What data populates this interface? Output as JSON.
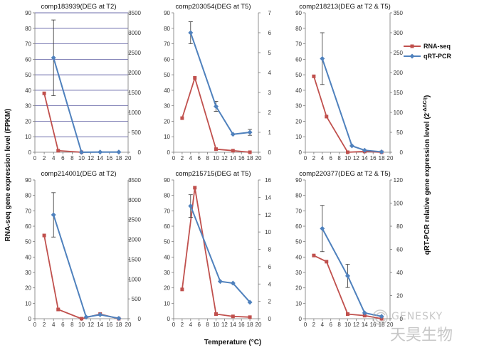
{
  "figure": {
    "y_left_label": "RNA-seq gene expression level (FPKM)",
    "y_right_label": "qRT-PCR relative gene expression level (2^-ΔΔCq)",
    "x_label": "Temperature (°C)",
    "legend": [
      {
        "name": "RNA-seq",
        "color": "#c0504d",
        "marker": "square"
      },
      {
        "name": "qRT-PCR",
        "color": "#4f81bd",
        "marker": "diamond"
      }
    ],
    "watermark": {
      "text_latin": "GENESKY",
      "text_cn": "天昊生物"
    }
  },
  "chart_data": [
    {
      "type": "line",
      "title": "comp183939(DEG at T2)",
      "x_ticks": [
        0,
        2,
        4,
        6,
        8,
        10,
        12,
        14,
        16,
        18,
        20
      ],
      "xlim": [
        0,
        20
      ],
      "ylim_left": [
        0,
        90
      ],
      "ylim_right": [
        0,
        3500
      ],
      "left_ticks": [
        0,
        10,
        20,
        30,
        40,
        50,
        60,
        70,
        80,
        90
      ],
      "right_ticks": [
        0,
        500,
        1000,
        1500,
        2000,
        2500,
        3000,
        3500
      ],
      "grid": true,
      "series": [
        {
          "name": "RNA-seq",
          "axis": "left",
          "x": [
            2,
            5,
            10
          ],
          "y": [
            38,
            1,
            0
          ]
        },
        {
          "name": "qRT-PCR",
          "axis": "right",
          "x": [
            4,
            10,
            14,
            18
          ],
          "y": [
            2370,
            0,
            5,
            5
          ],
          "err": [
            950,
            0,
            0,
            0
          ]
        }
      ]
    },
    {
      "type": "line",
      "title": "comp203054(DEG at T5)",
      "x_ticks": [
        0,
        2,
        4,
        6,
        8,
        10,
        12,
        14,
        16,
        18,
        20
      ],
      "xlim": [
        0,
        20
      ],
      "ylim_left": [
        0,
        90
      ],
      "ylim_right": [
        0,
        7
      ],
      "left_ticks": [
        0,
        10,
        20,
        30,
        40,
        50,
        60,
        70,
        80,
        90
      ],
      "right_ticks": [
        0,
        1,
        2,
        3,
        4,
        5,
        6,
        7
      ],
      "grid": false,
      "series": [
        {
          "name": "RNA-seq",
          "axis": "left",
          "x": [
            2,
            5,
            10,
            14,
            18
          ],
          "y": [
            22,
            48,
            2,
            1,
            0
          ]
        },
        {
          "name": "qRT-PCR",
          "axis": "right",
          "x": [
            4,
            10,
            14,
            18
          ],
          "y": [
            6.0,
            2.3,
            0.9,
            1.0
          ],
          "err": [
            0.55,
            0.25,
            0,
            0.15
          ]
        }
      ]
    },
    {
      "type": "line",
      "title": "comp218213(DEG at T2 & T5)",
      "x_ticks": [
        0,
        2,
        4,
        6,
        8,
        10,
        12,
        14,
        16,
        18,
        20
      ],
      "xlim": [
        0,
        20
      ],
      "ylim_left": [
        0,
        90
      ],
      "ylim_right": [
        0,
        350
      ],
      "left_ticks": [
        0,
        10,
        20,
        30,
        40,
        50,
        60,
        70,
        80,
        90
      ],
      "right_ticks": [
        0,
        50,
        100,
        150,
        200,
        250,
        300,
        350
      ],
      "grid": false,
      "series": [
        {
          "name": "RNA-seq",
          "axis": "left",
          "x": [
            2,
            5,
            10,
            14,
            18
          ],
          "y": [
            49,
            23,
            0,
            0.5,
            0
          ]
        },
        {
          "name": "qRT-PCR",
          "axis": "right",
          "x": [
            4,
            11,
            14,
            18
          ],
          "y": [
            235,
            16,
            5,
            1
          ],
          "err": [
            65,
            0,
            0,
            0
          ]
        }
      ]
    },
    {
      "type": "line",
      "title": "comp214001(DEG at T2)",
      "x_ticks": [
        0,
        2,
        4,
        6,
        8,
        10,
        12,
        14,
        16,
        18,
        20
      ],
      "xlim": [
        0,
        20
      ],
      "ylim_left": [
        0,
        90
      ],
      "ylim_right": [
        0,
        3500
      ],
      "left_ticks": [
        0,
        10,
        20,
        30,
        40,
        50,
        60,
        70,
        80,
        90
      ],
      "right_ticks": [
        0,
        500,
        1000,
        1500,
        2000,
        2500,
        3000,
        3500
      ],
      "grid": false,
      "series": [
        {
          "name": "RNA-seq",
          "axis": "left",
          "x": [
            2,
            5,
            10,
            14,
            18
          ],
          "y": [
            54,
            6,
            0,
            3,
            0
          ]
        },
        {
          "name": "qRT-PCR",
          "axis": "right",
          "x": [
            4,
            11,
            14,
            18
          ],
          "y": [
            2620,
            40,
            100,
            10
          ],
          "err": [
            560,
            0,
            0,
            0
          ]
        }
      ]
    },
    {
      "type": "line",
      "title": "comp215715(DEG at T5)",
      "x_ticks": [
        0,
        2,
        4,
        6,
        8,
        10,
        12,
        14,
        16,
        18,
        20
      ],
      "xlim": [
        0,
        20
      ],
      "ylim_left": [
        0,
        90
      ],
      "ylim_right": [
        0,
        16
      ],
      "left_ticks": [
        0,
        10,
        20,
        30,
        40,
        50,
        60,
        70,
        80,
        90
      ],
      "right_ticks": [
        0,
        2,
        4,
        6,
        8,
        10,
        12,
        14,
        16
      ],
      "grid": false,
      "series": [
        {
          "name": "RNA-seq",
          "axis": "left",
          "x": [
            2,
            5,
            10,
            14,
            18
          ],
          "y": [
            19,
            85,
            3,
            1.5,
            1
          ]
        },
        {
          "name": "qRT-PCR",
          "axis": "right",
          "x": [
            4,
            11,
            14,
            18
          ],
          "y": [
            13.0,
            4.3,
            4.1,
            1.9
          ],
          "err": [
            1.3,
            0,
            0,
            0
          ]
        }
      ]
    },
    {
      "type": "line",
      "title": "comp220377(DEG at T2 & T5)",
      "x_ticks": [
        0,
        2,
        4,
        6,
        8,
        10,
        12,
        14,
        16,
        18,
        20
      ],
      "xlim": [
        0,
        20
      ],
      "ylim_left": [
        0,
        90
      ],
      "ylim_right": [
        0,
        120
      ],
      "left_ticks": [
        0,
        10,
        20,
        30,
        40,
        50,
        60,
        70,
        80,
        90
      ],
      "right_ticks": [
        0,
        20,
        40,
        60,
        80,
        100,
        120
      ],
      "grid": false,
      "series": [
        {
          "name": "RNA-seq",
          "axis": "left",
          "x": [
            2,
            5,
            10,
            14,
            18
          ],
          "y": [
            41,
            37,
            3,
            2,
            0
          ]
        },
        {
          "name": "qRT-PCR",
          "axis": "right",
          "x": [
            4,
            10,
            14,
            18
          ],
          "y": [
            78,
            37,
            5,
            2
          ],
          "err": [
            20,
            10,
            0,
            0
          ]
        }
      ]
    }
  ]
}
